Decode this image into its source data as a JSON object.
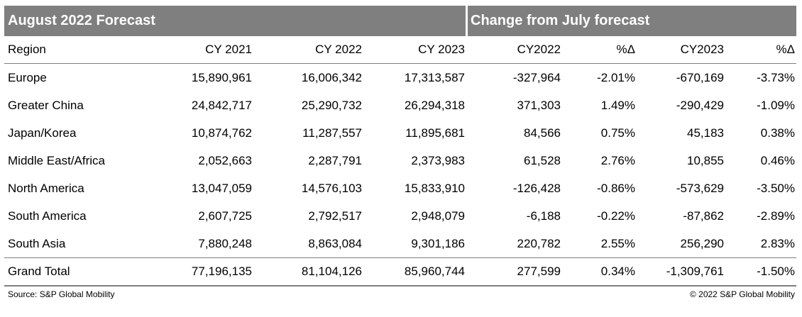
{
  "header": {
    "left_title": "August 2022 Forecast",
    "right_title": "Change from July forecast"
  },
  "columns": [
    "Region",
    "CY 2021",
    "CY 2022",
    "CY 2023",
    "CY2022",
    "%Δ",
    "CY2023",
    "%Δ"
  ],
  "rows": [
    [
      "Europe",
      "15,890,961",
      "16,006,342",
      "17,313,587",
      "-327,964",
      "-2.01%",
      "-670,169",
      "-3.73%"
    ],
    [
      "Greater China",
      "24,842,717",
      "25,290,732",
      "26,294,318",
      "371,303",
      "1.49%",
      "-290,429",
      "-1.09%"
    ],
    [
      "Japan/Korea",
      "10,874,762",
      "11,287,557",
      "11,895,681",
      "84,566",
      "0.75%",
      "45,183",
      "0.38%"
    ],
    [
      "Middle East/Africa",
      "2,052,663",
      "2,287,791",
      "2,373,983",
      "61,528",
      "2.76%",
      "10,855",
      "0.46%"
    ],
    [
      "North America",
      "13,047,059",
      "14,576,103",
      "15,833,910",
      "-126,428",
      "-0.86%",
      "-573,629",
      "-3.50%"
    ],
    [
      "South America",
      "2,607,725",
      "2,792,517",
      "2,948,079",
      "-6,188",
      "-0.22%",
      "-87,862",
      "-2.89%"
    ],
    [
      "South Asia",
      "7,880,248",
      "8,863,084",
      "9,301,186",
      "220,782",
      "2.55%",
      "256,290",
      "2.83%"
    ]
  ],
  "total": [
    "Grand Total",
    "77,196,135",
    "81,104,126",
    "85,960,744",
    "277,599",
    "0.34%",
    "-1,309,761",
    "-1.50%"
  ],
  "footer": {
    "source": "Source: S&P Global Mobility",
    "copyright": "© 2022 S&P Global Mobility"
  }
}
